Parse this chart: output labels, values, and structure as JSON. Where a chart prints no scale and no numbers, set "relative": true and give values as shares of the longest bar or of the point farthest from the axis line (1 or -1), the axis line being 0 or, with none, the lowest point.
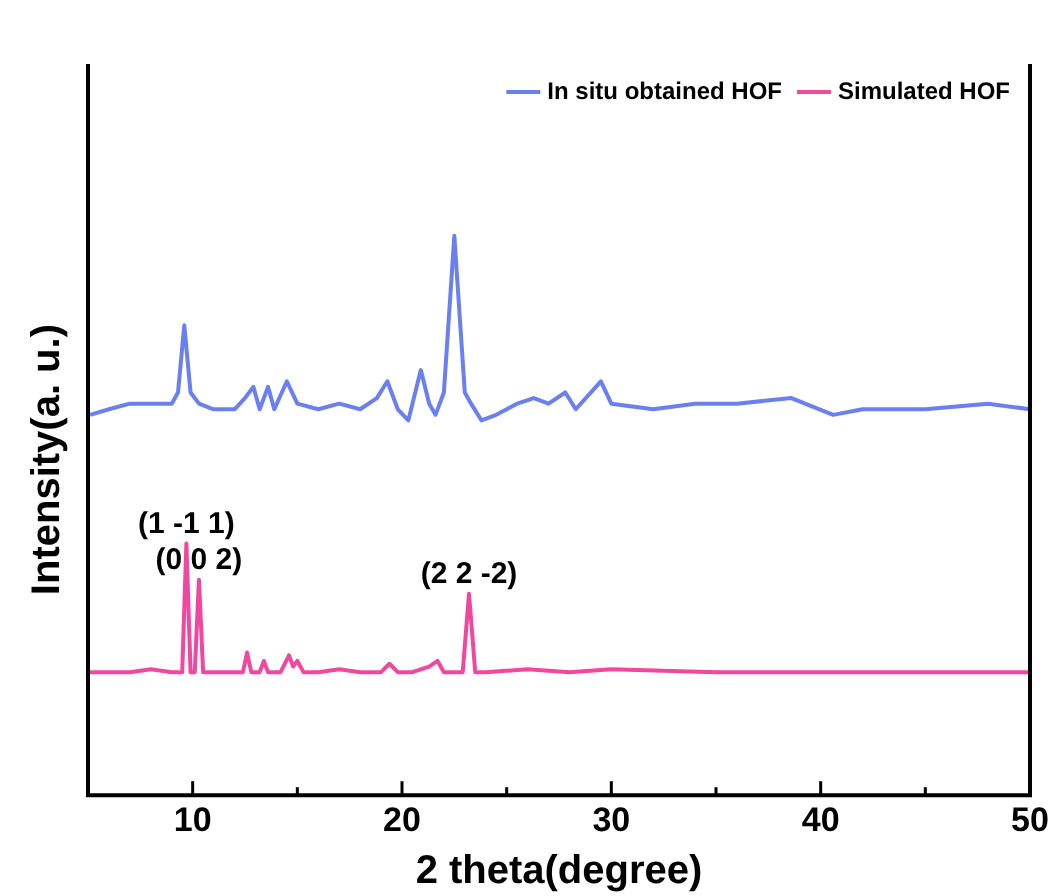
{
  "chart_data": {
    "type": "line",
    "relative": true,
    "xlabel": "2 theta(degree)",
    "ylabel": "Intensity(a. u.)",
    "xlim": [
      5,
      50
    ],
    "xticks": [
      10,
      {
        "value": 15,
        "label": null
      },
      20,
      {
        "value": 25,
        "label": null
      },
      30,
      {
        "value": 35,
        "label": null
      },
      40,
      {
        "value": 45,
        "label": null
      },
      50
    ],
    "tick_labels": "x",
    "grid": false,
    "legend": "top right",
    "marker": "none",
    "line_style": "solid",
    "series": [
      {
        "name": "In situ obtained HOF",
        "color": "#6a7ff0",
        "x": [
          5.1,
          6,
          7,
          8,
          9,
          9.3,
          9.6,
          9.9,
          10.3,
          11,
          12,
          12.5,
          12.9,
          13.2,
          13.6,
          13.9,
          14.5,
          15,
          16,
          17,
          18,
          18.8,
          19.3,
          19.8,
          20.3,
          20.9,
          21.3,
          21.6,
          22,
          22.5,
          23,
          23.3,
          23.8,
          24.5,
          25.5,
          26.3,
          27,
          27.8,
          28.3,
          29.5,
          30,
          32,
          34,
          36,
          38.6,
          40.6,
          42,
          45,
          48,
          50
        ],
        "values": [
          0.68,
          0.69,
          0.7,
          0.7,
          0.7,
          0.72,
          0.84,
          0.72,
          0.7,
          0.69,
          0.69,
          0.71,
          0.73,
          0.69,
          0.73,
          0.69,
          0.74,
          0.7,
          0.69,
          0.7,
          0.69,
          0.71,
          0.74,
          0.69,
          0.67,
          0.76,
          0.7,
          0.68,
          0.72,
          1,
          0.72,
          0.7,
          0.67,
          0.68,
          0.7,
          0.71,
          0.7,
          0.72,
          0.69,
          0.74,
          0.7,
          0.69,
          0.7,
          0.7,
          0.71,
          0.68,
          0.69,
          0.69,
          0.7,
          0.69
        ]
      },
      {
        "name": "Simulated HOF",
        "color": "#f0479f",
        "x": [
          5,
          7,
          8,
          9,
          9.5,
          9.7,
          9.9,
          10.1,
          10.3,
          10.5,
          11,
          12,
          12.4,
          12.6,
          12.8,
          13.2,
          13.4,
          13.6,
          14.2,
          14.6,
          14.8,
          15,
          15.3,
          16,
          17,
          18,
          19,
          19.4,
          19.8,
          20.5,
          21.3,
          21.7,
          22,
          22.9,
          23.2,
          23.5,
          24,
          26,
          28,
          30,
          35,
          40,
          45,
          50
        ],
        "values": [
          0.22,
          0.22,
          0.225,
          0.22,
          0.22,
          0.45,
          0.22,
          0.22,
          0.385,
          0.22,
          0.22,
          0.22,
          0.22,
          0.255,
          0.22,
          0.22,
          0.24,
          0.22,
          0.22,
          0.25,
          0.23,
          0.24,
          0.22,
          0.22,
          0.225,
          0.22,
          0.22,
          0.235,
          0.22,
          0.22,
          0.23,
          0.24,
          0.22,
          0.22,
          0.36,
          0.22,
          0.22,
          0.225,
          0.22,
          0.225,
          0.22,
          0.22,
          0.22,
          0.22
        ]
      }
    ],
    "annotations": [
      {
        "text": "(1 -1 1)",
        "x": 9.7,
        "y": 0.45
      },
      {
        "text": "(0 0 2)",
        "x": 10.3,
        "y": 0.385
      },
      {
        "text": "(2 2 -2)",
        "x": 23.2,
        "y": 0.36
      }
    ]
  }
}
